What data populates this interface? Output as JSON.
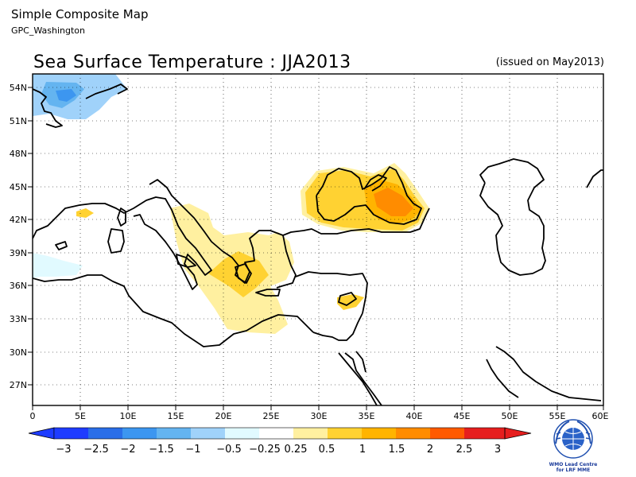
{
  "header": {
    "title": "Simple Composite Map",
    "subtitle": "GPC_Washington"
  },
  "map": {
    "title": "Sea Surface Temperature : JJA2013",
    "issued": "(issued on May2013)",
    "lon_ticks": [
      "0",
      "5E",
      "10E",
      "15E",
      "20E",
      "25E",
      "30E",
      "35E",
      "40E",
      "45E",
      "50E",
      "55E",
      "60E"
    ],
    "lat_ticks": [
      "54N",
      "51N",
      "48N",
      "45N",
      "42N",
      "39N",
      "36N",
      "33N",
      "30N",
      "27N"
    ],
    "lon_range": [
      0,
      60
    ],
    "lat_range": [
      25,
      55
    ],
    "grid": "dotted"
  },
  "colorbar": {
    "labels": [
      "−3",
      "−2.5",
      "−2",
      "−1.5",
      "−1",
      "−0.5",
      "−0.25",
      "0.25",
      "0.5",
      "1",
      "1.5",
      "2",
      "2.5",
      "3"
    ],
    "colors": [
      "#1e3cff",
      "#2a6ee8",
      "#3c96f0",
      "#64b4f0",
      "#a0d2fa",
      "#e1faff",
      "#ffffff",
      "#fff0a0",
      "#ffd232",
      "#ffb400",
      "#ff8c00",
      "#ff5a00",
      "#e61e1e"
    ]
  },
  "logo": {
    "caption": "WMO Lead Centre for LRF MME"
  }
}
